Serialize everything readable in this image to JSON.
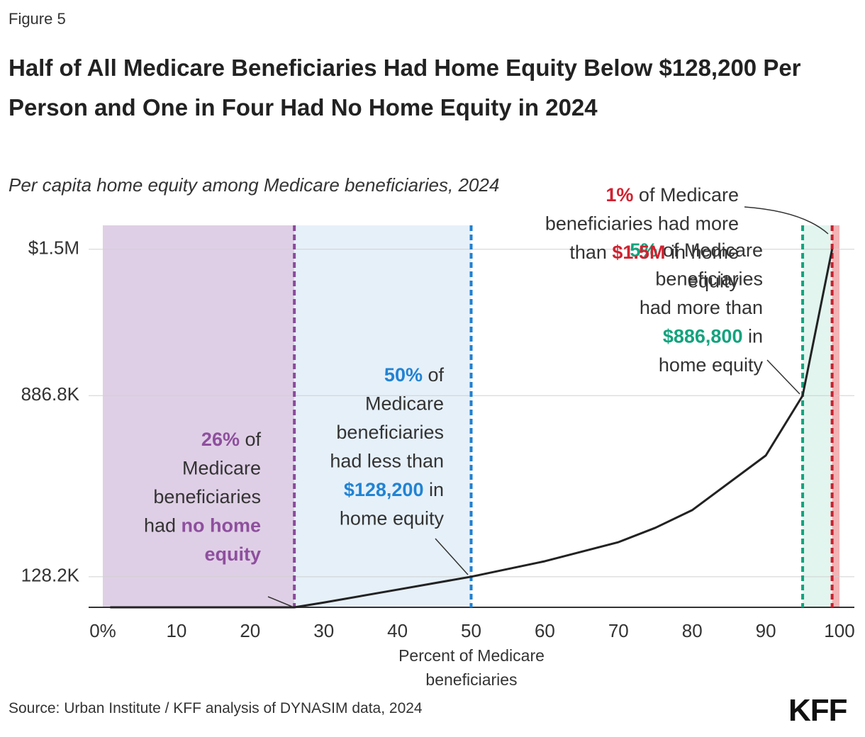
{
  "figure_label": "Figure 5",
  "chart_data": {
    "type": "line",
    "title": "Half of All Medicare Beneficiaries Had Home Equity Below $128,200 Per Person and One in Four Had No Home Equity in 2024",
    "subtitle": "Per capita home equity among Medicare beneficiaries, 2024",
    "x_label": "Percent of Medicare beneficiaries",
    "x": [
      1,
      10,
      20,
      25,
      26,
      30,
      40,
      50,
      60,
      70,
      75,
      80,
      90,
      95,
      99
    ],
    "values": [
      0,
      0,
      0,
      0,
      0,
      20000,
      74000,
      128200,
      193000,
      273000,
      333000,
      407000,
      636000,
      886800,
      1500000
    ],
    "color": "#222222",
    "xlim": [
      0,
      100
    ],
    "ylim": [
      0,
      1600000
    ],
    "xticks": [
      {
        "value": 0,
        "label": "0%"
      },
      10,
      20,
      30,
      40,
      50,
      60,
      70,
      80,
      90,
      100
    ],
    "yticks": [
      {
        "value": 128200,
        "label": "128.2K"
      },
      {
        "value": 886800,
        "label": "886.8K"
      },
      {
        "value": 1500000,
        "label": "$1.5M"
      }
    ],
    "grid": true,
    "regions": [
      {
        "from": 0,
        "to": 26,
        "color": "#dfcfe6"
      },
      {
        "from": 26,
        "to": 50,
        "color": "#e6f0f9"
      },
      {
        "from": 95,
        "to": 99,
        "color": "#e2f5ef"
      },
      {
        "from": 99,
        "to": 100,
        "color": "#f3b3b5"
      }
    ],
    "markers": [
      {
        "x": 26,
        "color": "#8a4b9c"
      },
      {
        "x": 50,
        "color": "#2080d0"
      },
      {
        "x": 95,
        "color": "#13a37d"
      },
      {
        "x": 99,
        "color": "#c8202e"
      }
    ],
    "annotations": [
      {
        "color": "#8e4f9e",
        "lines": [
          [
            {
              "text": "26%",
              "accent": true
            },
            {
              "text": " of"
            }
          ],
          [
            {
              "text": "Medicare"
            }
          ],
          [
            {
              "text": "beneficiaries"
            }
          ],
          [
            {
              "text": "had "
            },
            {
              "text": "no home",
              "accent": true
            }
          ],
          [
            {
              "text": "equity",
              "accent": true
            }
          ]
        ]
      },
      {
        "color": "#2183d3",
        "lines": [
          [
            {
              "text": "50%",
              "accent": true
            },
            {
              "text": " of"
            }
          ],
          [
            {
              "text": "Medicare"
            }
          ],
          [
            {
              "text": "beneficiaries"
            }
          ],
          [
            {
              "text": "had less than"
            }
          ],
          [
            {
              "text": "$128,200",
              "accent": true
            },
            {
              "text": " in"
            }
          ],
          [
            {
              "text": "home equity"
            }
          ]
        ]
      },
      {
        "color": "#13a37d",
        "lines": [
          [
            {
              "text": "5%",
              "accent": true
            },
            {
              "text": " of Medicare"
            }
          ],
          [
            {
              "text": "beneficiaries"
            }
          ],
          [
            {
              "text": "had more than"
            }
          ],
          [
            {
              "text": "$886,800",
              "accent": true
            },
            {
              "text": " in"
            }
          ],
          [
            {
              "text": "home equity"
            }
          ]
        ]
      },
      {
        "color": "#cf2230",
        "lines": [
          [
            {
              "text": "1%",
              "accent": true
            },
            {
              "text": " of Medicare"
            }
          ],
          [
            {
              "text": "beneficiaries had more"
            }
          ],
          [
            {
              "text": "than "
            },
            {
              "text": "$1.5M",
              "accent": true
            },
            {
              "text": " in home"
            }
          ],
          [
            {
              "text": "equity"
            }
          ]
        ]
      }
    ]
  },
  "source": "Source: Urban Institute / KFF analysis of DYNASIM data, 2024",
  "logo": "KFF"
}
